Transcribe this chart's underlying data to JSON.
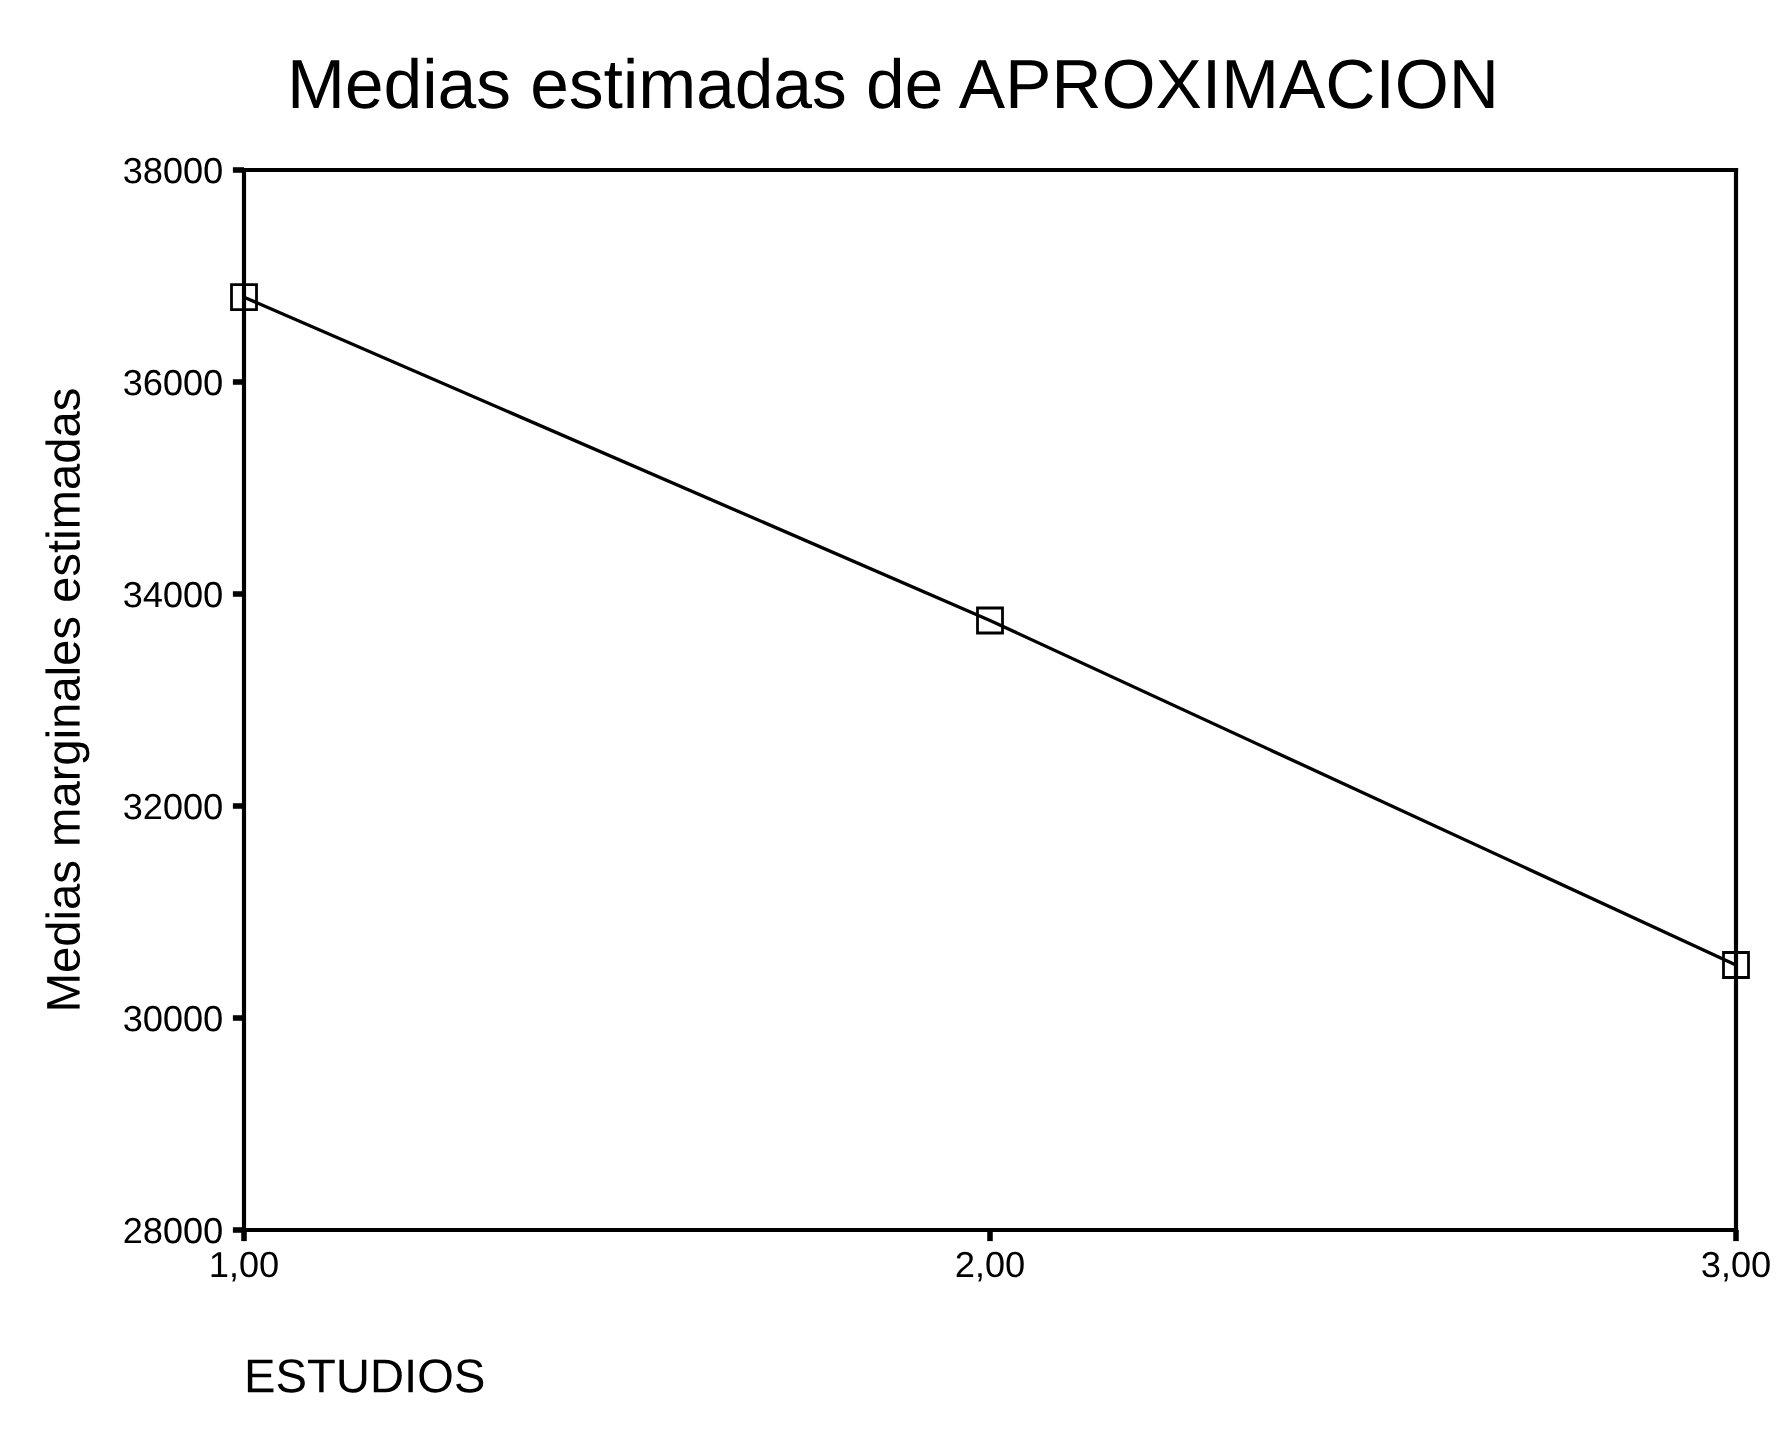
{
  "chart_data": {
    "type": "line",
    "title": "Medias estimadas de APROXIMACION",
    "xlabel": "ESTUDIOS",
    "ylabel": "Medias marginales estimadas",
    "x": [
      1,
      2,
      3
    ],
    "series": [
      {
        "color": "#000000",
        "values": [
          36800,
          33750,
          30500
        ]
      }
    ],
    "xlim": [
      1,
      3
    ],
    "xticks": [
      {
        "value": 1,
        "label": "1,00"
      },
      {
        "value": 2,
        "label": "2,00"
      },
      {
        "value": 3,
        "label": "3,00"
      }
    ],
    "ylim": [
      28000,
      38000
    ],
    "yticks": [
      28000,
      30000,
      32000,
      34000,
      36000,
      38000
    ],
    "grid": false,
    "legend": false,
    "marker": "square",
    "line_style": "solid"
  }
}
